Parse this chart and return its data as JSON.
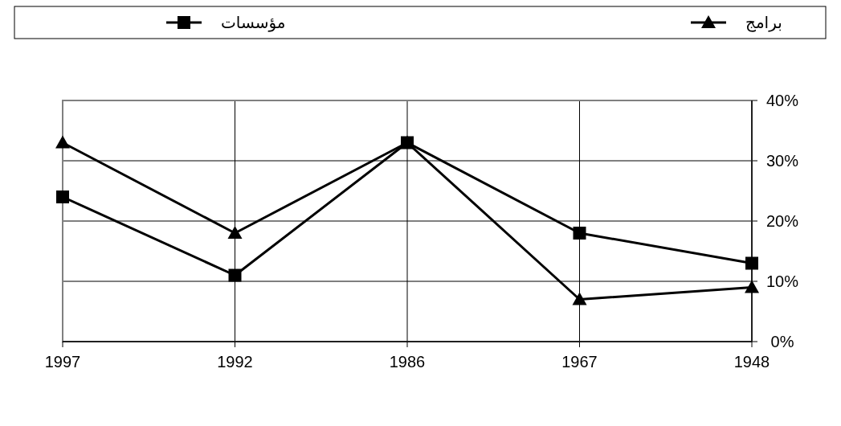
{
  "chart_data": {
    "type": "line",
    "categories": [
      "1997",
      "1992",
      "1986",
      "1967",
      "1948"
    ],
    "series": [
      {
        "name": "مؤسسات",
        "color": "#000000",
        "marker": "square",
        "values": [
          24,
          11,
          33,
          18,
          13
        ]
      },
      {
        "name": "برامج",
        "color": "#000000",
        "marker": "triangle",
        "values": [
          33,
          18,
          33,
          7,
          9
        ]
      }
    ],
    "ylim": [
      0,
      40
    ],
    "yticks": [
      {
        "value": 0,
        "label": "0%"
      },
      {
        "value": 10,
        "label": "10%"
      },
      {
        "value": 20,
        "label": "20%"
      },
      {
        "value": 30,
        "label": "30%"
      },
      {
        "value": 40,
        "label": "40%"
      }
    ],
    "grid": true,
    "legend": "top",
    "line_style": "solid"
  }
}
